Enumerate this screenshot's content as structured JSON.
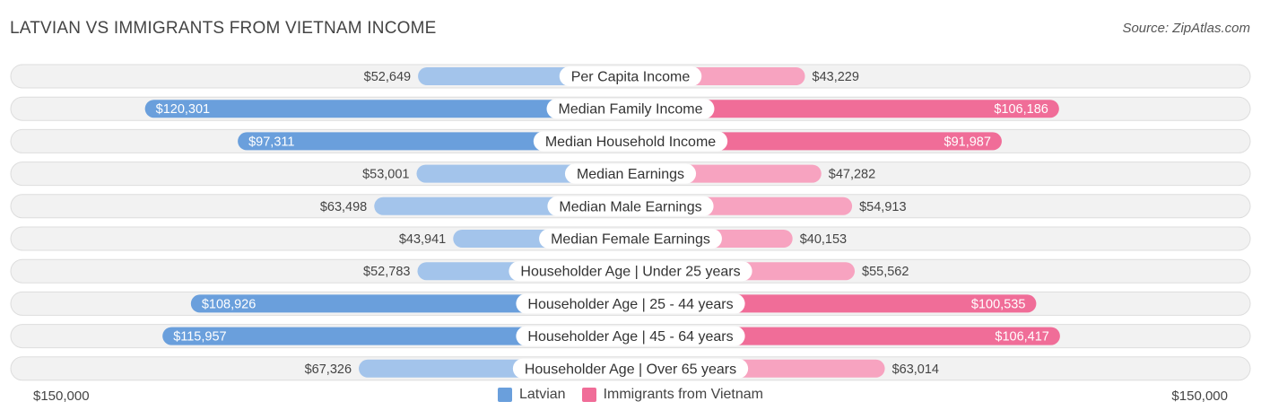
{
  "title": "LATVIAN VS IMMIGRANTS FROM VIETNAM INCOME",
  "source": "Source: ZipAtlas.com",
  "axis": {
    "left_label": "$150,000",
    "right_label": "$150,000"
  },
  "legend": {
    "left": "Latvian",
    "right": "Immigrants from Vietnam"
  },
  "colors": {
    "left_light": "#a3c4eb",
    "left_dark": "#6a9fdc",
    "right_light": "#f7a3c0",
    "right_dark": "#f06d98",
    "row_bg": "#f2f2f2",
    "row_border": "#dddddd"
  },
  "chart_data": {
    "type": "bar",
    "orientation": "horizontal-diverging",
    "title": "LATVIAN VS IMMIGRANTS FROM VIETNAM INCOME",
    "xlim": [
      0,
      150000
    ],
    "categories": [
      "Per Capita Income",
      "Median Family Income",
      "Median Household Income",
      "Median Earnings",
      "Median Male Earnings",
      "Median Female Earnings",
      "Householder Age | Under 25 years",
      "Householder Age | 25 - 44 years",
      "Householder Age | 45 - 64 years",
      "Householder Age | Over 65 years"
    ],
    "series": [
      {
        "name": "Latvian",
        "values": [
          52649,
          120301,
          97311,
          53001,
          63498,
          43941,
          52783,
          108926,
          115957,
          67326
        ],
        "labels": [
          "$52,649",
          "$120,301",
          "$97,311",
          "$53,001",
          "$63,498",
          "$43,941",
          "$52,783",
          "$108,926",
          "$115,957",
          "$67,326"
        ]
      },
      {
        "name": "Immigrants from Vietnam",
        "values": [
          43229,
          106186,
          91987,
          47282,
          54913,
          40153,
          55562,
          100535,
          106417,
          63014
        ],
        "labels": [
          "$43,229",
          "$106,186",
          "$91,987",
          "$47,282",
          "$54,913",
          "$40,153",
          "$55,562",
          "$100,535",
          "$106,417",
          "$63,014"
        ]
      }
    ]
  }
}
